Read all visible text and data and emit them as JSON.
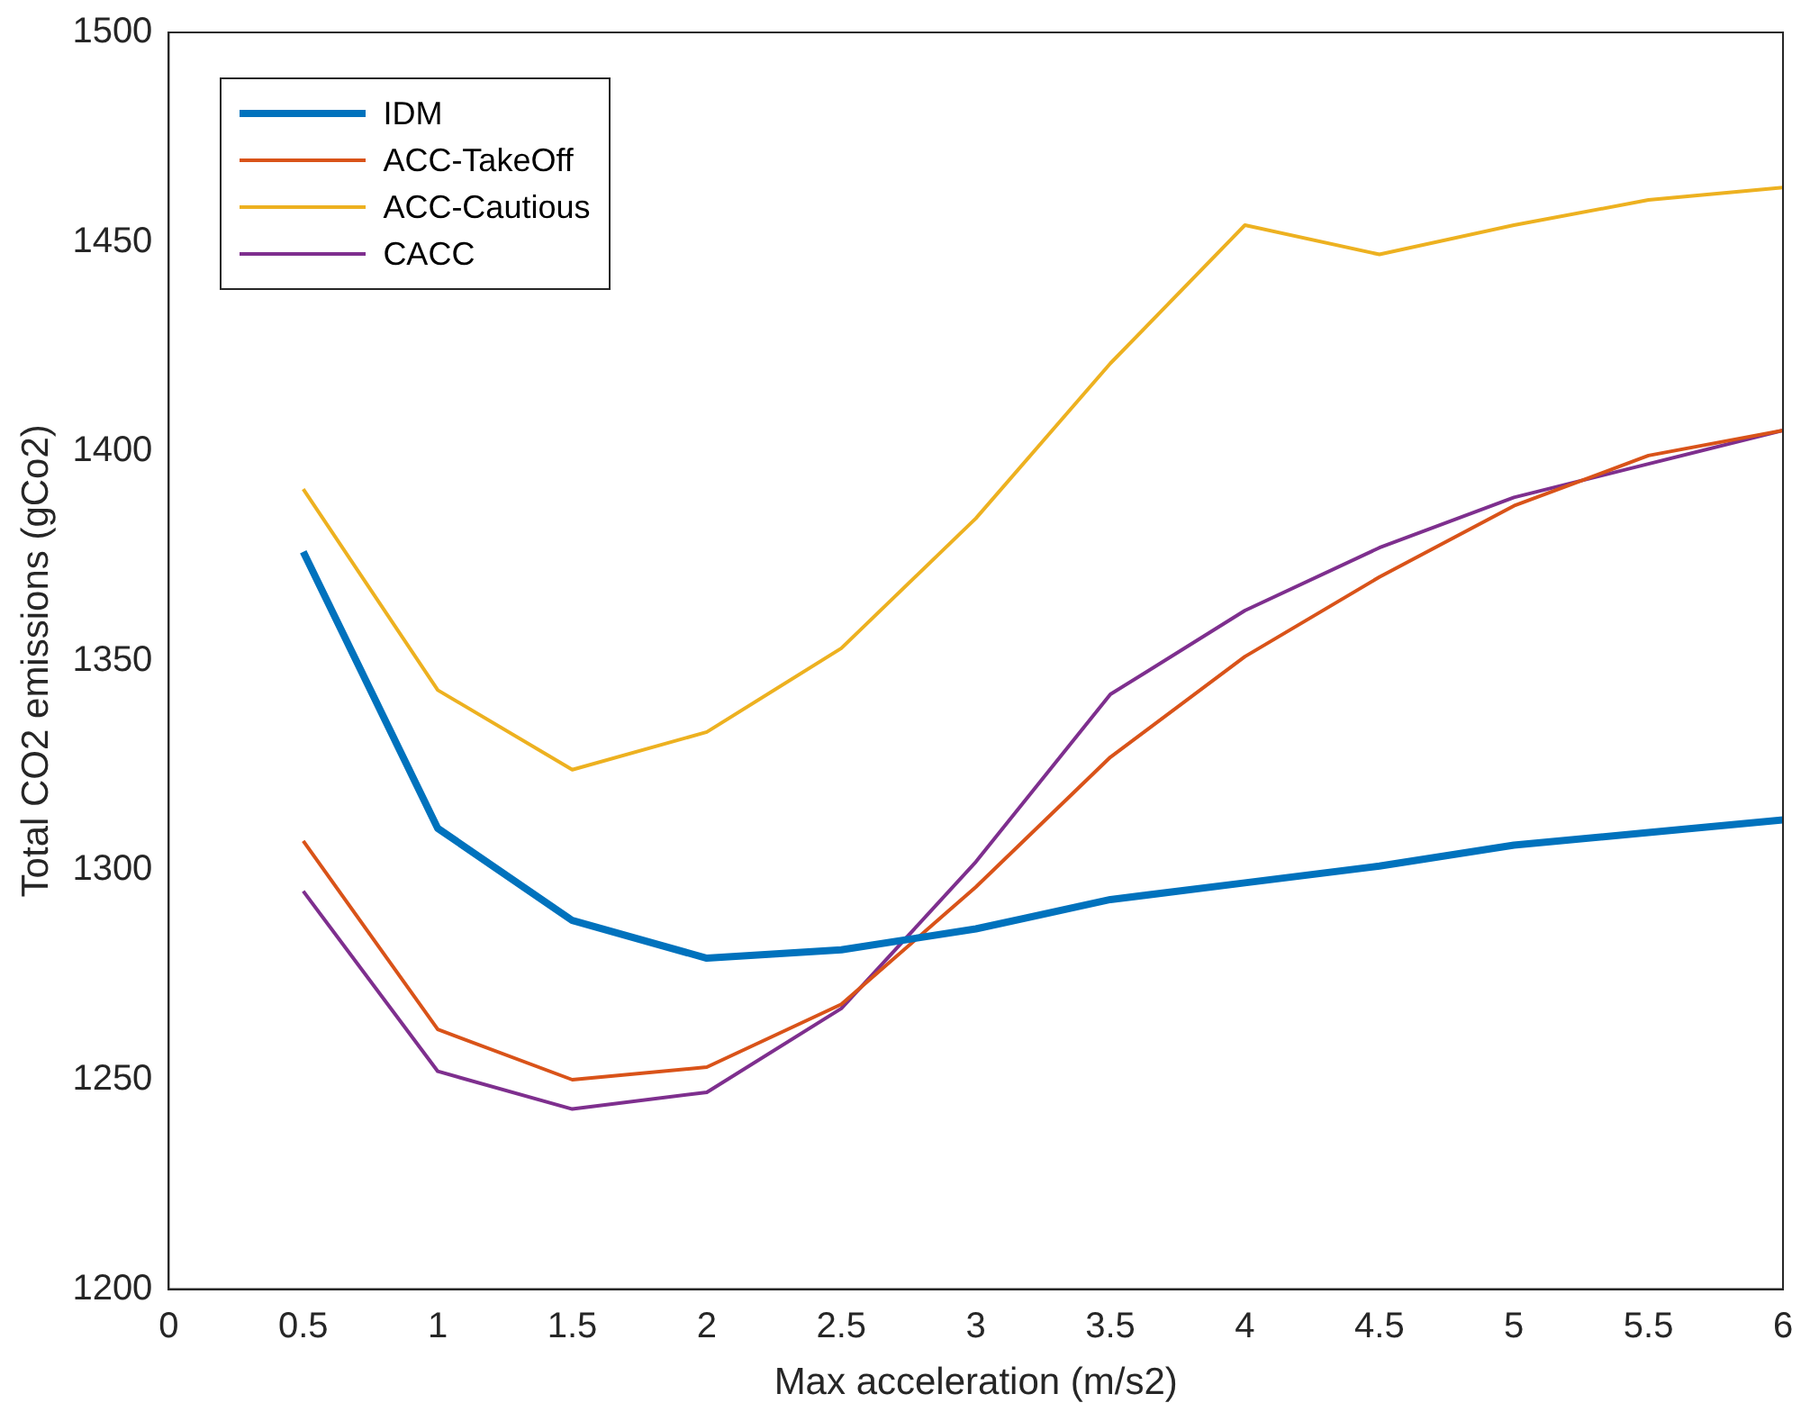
{
  "chart_data": {
    "type": "line",
    "xlabel": "Max acceleration (m/s2)",
    "ylabel": "Total CO2 emissions (gCo2)",
    "x": [
      0.5,
      1,
      1.5,
      2,
      2.5,
      3,
      3.5,
      4,
      4.5,
      5,
      5.5,
      6
    ],
    "xlim": [
      0,
      6
    ],
    "xticks": [
      0,
      0.5,
      1,
      1.5,
      2,
      2.5,
      3,
      3.5,
      4,
      4.5,
      5,
      5.5,
      6
    ],
    "ylim": [
      1200,
      1500
    ],
    "yticks": [
      1200,
      1250,
      1300,
      1350,
      1400,
      1450,
      1500
    ],
    "grid": false,
    "legend": "top left",
    "marker": "none",
    "line_style": "solid",
    "series": [
      {
        "name": "IDM",
        "color": "#0072bd",
        "values": [
          1376,
          1310,
          1288,
          1279,
          1281,
          1286,
          1293,
          1297,
          1301,
          1306,
          1309,
          1312
        ]
      },
      {
        "name": "ACC-TakeOff",
        "color": "#d95319",
        "values": [
          1307,
          1262,
          1250,
          1253,
          1268,
          1296,
          1327,
          1351,
          1370,
          1387,
          1399,
          1405
        ]
      },
      {
        "name": "ACC-Cautious",
        "color": "#edb120",
        "values": [
          1391,
          1343,
          1324,
          1333,
          1353,
          1384,
          1421,
          1454,
          1447,
          1454,
          1460,
          1463
        ]
      },
      {
        "name": "CACC",
        "color": "#7e2f8e",
        "values": [
          1295,
          1252,
          1243,
          1247,
          1267,
          1302,
          1342,
          1362,
          1377,
          1389,
          1397,
          1405
        ]
      }
    ]
  }
}
